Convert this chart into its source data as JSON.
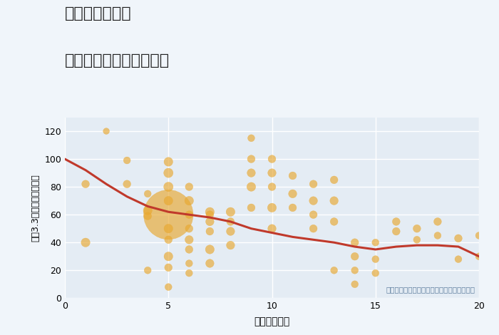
{
  "title_line1": "奈良県尺土駅の",
  "title_line2": "駅距離別中古戸建て価格",
  "xlabel": "駅距離（分）",
  "ylabel": "坪（3.3㎡）単価（万円）",
  "annotation": "円の大きさは、取引のあった物件面積を示す",
  "xlim": [
    0,
    20
  ],
  "ylim": [
    0,
    130
  ],
  "xticks": [
    0,
    5,
    10,
    15,
    20
  ],
  "yticks": [
    0,
    20,
    40,
    60,
    80,
    100,
    120
  ],
  "fig_bg_color": "#f0f5fa",
  "plot_bg_color": "#e4ecf4",
  "bubble_color": "#e8a830",
  "bubble_alpha": 0.65,
  "line_color": "#c0392b",
  "line_width": 2.2,
  "scatter_x": [
    1,
    1,
    2,
    3,
    3,
    4,
    4,
    4,
    4,
    5,
    5,
    5,
    5,
    5,
    5,
    5,
    5,
    5,
    5,
    6,
    6,
    6,
    6,
    6,
    6,
    6,
    6,
    7,
    7,
    7,
    7,
    7,
    7,
    8,
    8,
    8,
    8,
    9,
    9,
    9,
    9,
    9,
    10,
    10,
    10,
    10,
    10,
    11,
    11,
    11,
    12,
    12,
    12,
    12,
    13,
    13,
    13,
    13,
    14,
    14,
    14,
    14,
    15,
    15,
    15,
    16,
    16,
    17,
    17,
    18,
    18,
    19,
    19,
    20,
    20
  ],
  "scatter_y": [
    40,
    82,
    120,
    99,
    82,
    59,
    75,
    63,
    20,
    98,
    90,
    80,
    70,
    60,
    50,
    42,
    30,
    8,
    22,
    80,
    70,
    60,
    50,
    42,
    35,
    25,
    18,
    62,
    60,
    55,
    48,
    35,
    25,
    62,
    55,
    48,
    38,
    115,
    100,
    90,
    80,
    65,
    100,
    90,
    80,
    65,
    50,
    88,
    75,
    65,
    82,
    70,
    60,
    50,
    85,
    70,
    55,
    20,
    40,
    30,
    20,
    10,
    40,
    28,
    18,
    55,
    48,
    50,
    42,
    55,
    45,
    43,
    28,
    45,
    30
  ],
  "scatter_size": [
    80,
    60,
    40,
    50,
    60,
    60,
    50,
    80,
    50,
    80,
    90,
    90,
    80,
    2500,
    80,
    60,
    80,
    50,
    60,
    60,
    80,
    60,
    60,
    70,
    60,
    50,
    50,
    80,
    60,
    70,
    60,
    80,
    70,
    80,
    60,
    70,
    70,
    50,
    60,
    70,
    80,
    60,
    60,
    70,
    60,
    80,
    70,
    60,
    70,
    60,
    60,
    70,
    60,
    60,
    60,
    70,
    60,
    50,
    60,
    60,
    50,
    50,
    50,
    50,
    50,
    60,
    60,
    60,
    50,
    60,
    50,
    60,
    50,
    50,
    50
  ],
  "line_x": [
    0,
    1,
    2,
    3,
    4,
    5,
    6,
    7,
    8,
    9,
    10,
    11,
    12,
    13,
    14,
    15,
    16,
    17,
    18,
    19,
    20
  ],
  "line_y": [
    100,
    92,
    82,
    73,
    66,
    62,
    60,
    58,
    55,
    50,
    47,
    44,
    42,
    40,
    37,
    35,
    37,
    38,
    38,
    37,
    30
  ]
}
